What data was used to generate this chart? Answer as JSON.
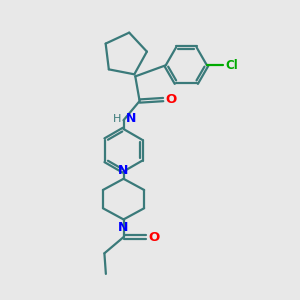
{
  "bg_color": "#e8e8e8",
  "bond_color": "#3a7a7a",
  "n_color": "#0000ff",
  "o_color": "#ff0000",
  "cl_color": "#00aa00",
  "line_width": 1.6,
  "figsize": [
    3.0,
    3.0
  ],
  "dpi": 100,
  "xlim": [
    0,
    10
  ],
  "ylim": [
    0,
    10
  ]
}
